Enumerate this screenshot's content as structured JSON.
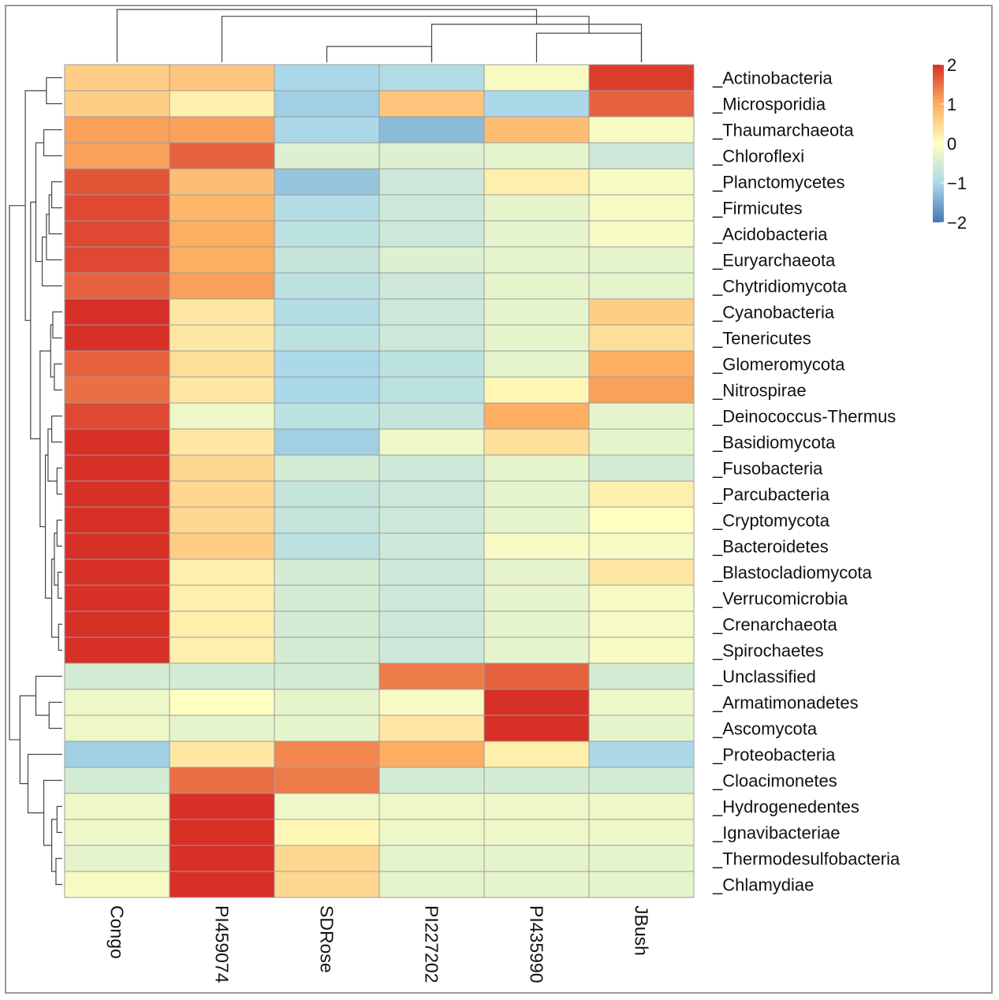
{
  "chart_data": {
    "type": "heatmap",
    "title": "",
    "columns": [
      "Congo",
      "PI459074",
      "SDRose",
      "PI227202",
      "PI435990",
      "JBush"
    ],
    "rows": [
      "_Actinobacteria",
      "_Microsporidia",
      "_Thaumarchaeota",
      "_Chloroflexi",
      "_Planctomycetes",
      "_Firmicutes",
      "_Acidobacteria",
      "_Euryarchaeota",
      "_Chytridiomycota",
      "_Cyanobacteria",
      "_Tenericutes",
      "_Glomeromycota",
      "_Nitrospirae",
      "_Deinococcus-Thermus",
      "_Basidiomycota",
      "_Fusobacteria",
      "_Parcubacteria",
      "_Cryptomycota",
      "_Bacteroidetes",
      "_Blastocladiomycota",
      "_Verrucomicrobia",
      "_Crenarchaeota",
      "_Spirochaetes",
      "_Unclassified",
      "_Armatimonadetes",
      "_Ascomycota",
      "_Proteobacteria",
      "_Cloacimonetes",
      "_Hydrogenedentes",
      "_Ignavibacteriae",
      "_Thermodesulfobacteria",
      "_Chlamydiae"
    ],
    "values": [
      [
        0.6,
        0.7,
        -1.0,
        -0.9,
        -0.1,
        1.9
      ],
      [
        0.6,
        0.2,
        -1.1,
        0.7,
        -1.0,
        1.6
      ],
      [
        1.1,
        1.1,
        -1.0,
        -1.3,
        0.8,
        -0.1
      ],
      [
        1.1,
        1.6,
        -0.4,
        -0.4,
        -0.3,
        -0.6
      ],
      [
        1.7,
        0.8,
        -1.2,
        -0.6,
        0.2,
        -0.1
      ],
      [
        1.8,
        0.9,
        -0.9,
        -0.6,
        -0.3,
        -0.1
      ],
      [
        1.8,
        1.0,
        -0.8,
        -0.6,
        -0.3,
        -0.1
      ],
      [
        1.8,
        1.0,
        -0.7,
        -0.4,
        -0.3,
        -0.3
      ],
      [
        1.6,
        1.1,
        -0.8,
        -0.6,
        -0.3,
        -0.3
      ],
      [
        2.0,
        0.3,
        -0.9,
        -0.6,
        -0.3,
        0.6
      ],
      [
        2.1,
        0.3,
        -0.8,
        -0.6,
        -0.3,
        0.4
      ],
      [
        1.6,
        0.4,
        -1.0,
        -0.8,
        -0.3,
        1.0
      ],
      [
        1.5,
        0.3,
        -1.0,
        -0.8,
        0.1,
        1.1
      ],
      [
        1.8,
        -0.2,
        -0.8,
        -0.7,
        1.0,
        -0.3
      ],
      [
        2.1,
        0.3,
        -1.1,
        -0.2,
        0.4,
        -0.3
      ],
      [
        2.2,
        0.5,
        -0.5,
        -0.6,
        -0.3,
        -0.5
      ],
      [
        2.2,
        0.5,
        -0.7,
        -0.6,
        -0.3,
        0.2
      ],
      [
        2.2,
        0.5,
        -0.7,
        -0.6,
        -0.3,
        0.0
      ],
      [
        2.1,
        0.6,
        -0.8,
        -0.6,
        -0.1,
        -0.1
      ],
      [
        2.3,
        0.2,
        -0.5,
        -0.6,
        -0.3,
        0.3
      ],
      [
        2.3,
        0.2,
        -0.5,
        -0.6,
        -0.3,
        -0.1
      ],
      [
        2.3,
        0.2,
        -0.5,
        -0.6,
        -0.3,
        -0.1
      ],
      [
        2.3,
        0.2,
        -0.5,
        -0.6,
        -0.3,
        -0.1
      ],
      [
        -0.5,
        -0.5,
        -0.5,
        1.4,
        1.6,
        -0.5
      ],
      [
        -0.2,
        0.0,
        -0.3,
        -0.1,
        2.3,
        -0.2
      ],
      [
        -0.2,
        -0.3,
        -0.3,
        0.3,
        2.3,
        -0.3
      ],
      [
        -1.1,
        0.3,
        1.3,
        1.0,
        0.2,
        -1.0
      ],
      [
        -0.5,
        1.5,
        1.4,
        -0.5,
        -0.5,
        -0.5
      ],
      [
        -0.2,
        2.4,
        -0.2,
        -0.2,
        -0.2,
        -0.2
      ],
      [
        -0.2,
        2.4,
        0.1,
        -0.2,
        -0.2,
        -0.2
      ],
      [
        -0.3,
        2.3,
        0.5,
        -0.3,
        -0.3,
        -0.3
      ],
      [
        -0.1,
        2.3,
        0.5,
        -0.3,
        -0.3,
        -0.3
      ]
    ],
    "color_scale": {
      "min": -2,
      "max": 2,
      "colors": [
        "#4575b4",
        "#abd9e9",
        "#ffffbf",
        "#fdae61",
        "#d73027"
      ],
      "ticks": [
        2,
        1,
        0,
        -1,
        -2
      ],
      "tick_labels": [
        "2",
        "1",
        "0",
        "−1",
        "−2"
      ]
    },
    "column_dendrogram": {
      "order": [
        "Congo",
        "PI459074",
        "SDRose",
        "PI227202",
        "PI435990",
        "JBush"
      ],
      "merges": [
        [
          3,
          4,
          0.3
        ],
        [
          5,
          6,
          0.55
        ],
        [
          6,
          4,
          0.72
        ],
        [
          2,
          8,
          0.87
        ],
        [
          1,
          9,
          1.0
        ]
      ]
    },
    "row_dendrogram": {
      "merges": [
        [
          1,
          2,
          0.3
        ],
        [
          3,
          4,
          0.35
        ],
        [
          5,
          6,
          0.2
        ],
        [
          10,
          11,
          0.18
        ],
        [
          12,
          13,
          0.15
        ],
        [
          14,
          15,
          0.2
        ],
        [
          16,
          17,
          0.1
        ],
        [
          18,
          19,
          0.1
        ],
        [
          20,
          21,
          0.08
        ],
        [
          22,
          23,
          0.07
        ],
        [
          25,
          26,
          0.25
        ],
        [
          29,
          30,
          0.1
        ],
        [
          31,
          32,
          0.12
        ]
      ]
    }
  }
}
